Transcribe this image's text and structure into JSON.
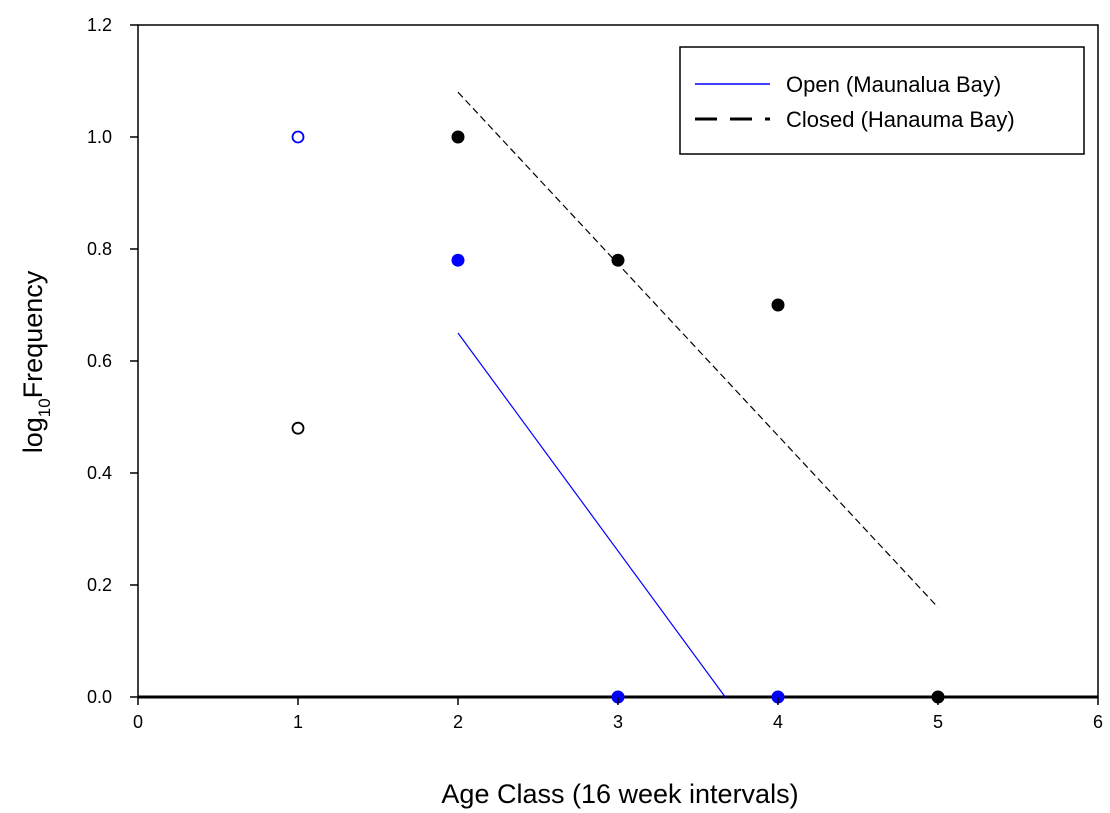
{
  "chart_data": {
    "type": "scatter",
    "title": "",
    "xlabel": "Age Class (16 week intervals)",
    "ylabel": {
      "prefix": "log",
      "subscript": "10",
      "suffix": "Frequency"
    },
    "xlim": [
      0,
      6
    ],
    "ylim": [
      0,
      1.2
    ],
    "x_ticks": [
      0,
      1,
      2,
      3,
      4,
      5,
      6
    ],
    "x_tick_labels": [
      "0",
      "1",
      "2",
      "3",
      "4",
      "5",
      "6"
    ],
    "y_ticks": [
      0,
      0.2,
      0.4,
      0.6,
      0.8,
      1.0,
      1.2
    ],
    "y_tick_labels": [
      "0.0",
      "0.2",
      "0.4",
      "0.6",
      "0.8",
      "1.0",
      "1.2"
    ],
    "grid": false,
    "legend_position": "top-right",
    "series": [
      {
        "name": "Open (Maunalua Bay)",
        "color": "#0000ff",
        "line_style": "solid",
        "points_open": [
          {
            "x": 1,
            "y": 1.0
          }
        ],
        "points_filled": [
          {
            "x": 2,
            "y": 0.78
          },
          {
            "x": 3,
            "y": 0.0
          },
          {
            "x": 4,
            "y": 0.0
          }
        ],
        "fit_line": [
          {
            "x": 2,
            "y": 0.65
          },
          {
            "x": 3.67,
            "y": 0.0
          }
        ]
      },
      {
        "name": "Closed (Hanauma Bay)",
        "color": "#000000",
        "line_style": "dashed",
        "points_open": [
          {
            "x": 1,
            "y": 0.48
          }
        ],
        "points_filled": [
          {
            "x": 2,
            "y": 1.0
          },
          {
            "x": 3,
            "y": 0.78
          },
          {
            "x": 4,
            "y": 0.7
          },
          {
            "x": 5,
            "y": 0.0
          }
        ],
        "fit_line": [
          {
            "x": 2,
            "y": 1.08
          },
          {
            "x": 5,
            "y": 0.16
          }
        ]
      }
    ]
  }
}
